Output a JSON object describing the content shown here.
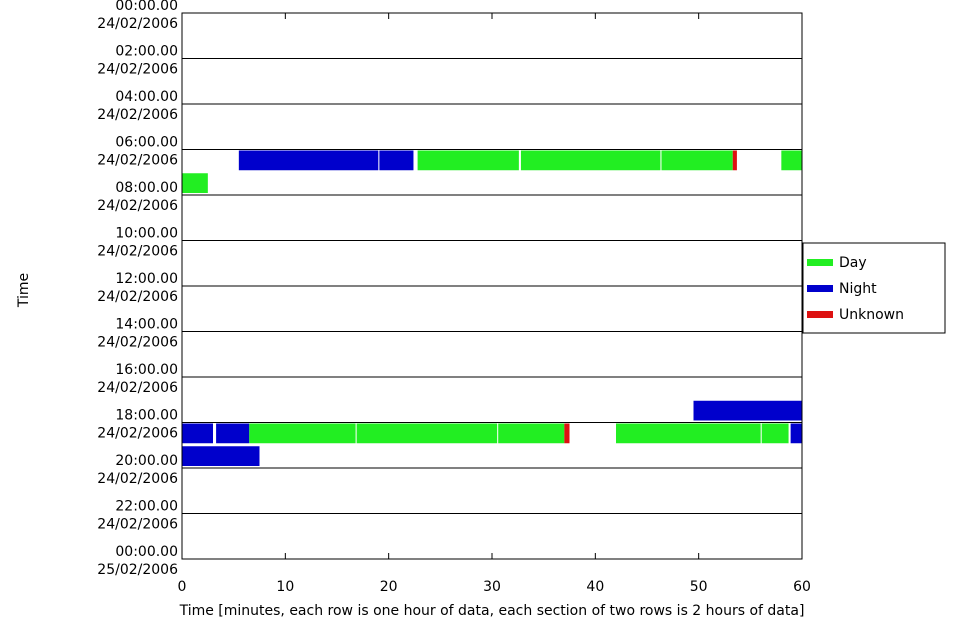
{
  "chart_data": {
    "type": "timeline",
    "xlabel": "Time [minutes, each row is one hour of data, each section of two rows is 2 hours of data]",
    "ylabel": "Time",
    "xlim": [
      0,
      60
    ],
    "xticks": [
      0,
      10,
      20,
      30,
      40,
      50,
      60
    ],
    "ylim": [
      0,
      24
    ],
    "yticks": [
      {
        "value": 0,
        "label": [
          "00:00.00",
          "24/02/2006"
        ]
      },
      {
        "value": 2,
        "label": [
          "02:00.00",
          "24/02/2006"
        ]
      },
      {
        "value": 4,
        "label": [
          "04:00.00",
          "24/02/2006"
        ]
      },
      {
        "value": 6,
        "label": [
          "06:00.00",
          "24/02/2006"
        ]
      },
      {
        "value": 8,
        "label": [
          "08:00.00",
          "24/02/2006"
        ]
      },
      {
        "value": 10,
        "label": [
          "10:00.00",
          "24/02/2006"
        ]
      },
      {
        "value": 12,
        "label": [
          "12:00.00",
          "24/02/2006"
        ]
      },
      {
        "value": 14,
        "label": [
          "14:00.00",
          "24/02/2006"
        ]
      },
      {
        "value": 16,
        "label": [
          "16:00.00",
          "24/02/2006"
        ]
      },
      {
        "value": 18,
        "label": [
          "18:00.00",
          "24/02/2006"
        ]
      },
      {
        "value": 20,
        "label": [
          "20:00.00",
          "24/02/2006"
        ]
      },
      {
        "value": 22,
        "label": [
          "22:00.00",
          "24/02/2006"
        ]
      },
      {
        "value": 24,
        "label": [
          "00:00.00",
          "25/02/2006"
        ]
      }
    ],
    "grid": true,
    "legend": "right",
    "series": [
      {
        "name": "Day",
        "color": "#22ee22",
        "segments": [
          {
            "row": 6,
            "start": 22.8,
            "end": 32.6
          },
          {
            "row": 6,
            "start": 32.8,
            "end": 46.3
          },
          {
            "row": 6,
            "start": 46.4,
            "end": 53.3
          },
          {
            "row": 6,
            "start": 58,
            "end": 60
          },
          {
            "row": 7,
            "start": 0,
            "end": 2.5
          },
          {
            "row": 18,
            "start": 6.5,
            "end": 16.8
          },
          {
            "row": 18,
            "start": 16.9,
            "end": 30.5
          },
          {
            "row": 18,
            "start": 30.6,
            "end": 37
          },
          {
            "row": 18,
            "start": 42,
            "end": 56
          },
          {
            "row": 18,
            "start": 56.1,
            "end": 58.7
          }
        ]
      },
      {
        "name": "Night",
        "color": "#0000cc",
        "segments": [
          {
            "row": 6,
            "start": 5.5,
            "end": 19
          },
          {
            "row": 6,
            "start": 19.1,
            "end": 22.4
          },
          {
            "row": 17,
            "start": 49.5,
            "end": 60
          },
          {
            "row": 18,
            "start": 0,
            "end": 3
          },
          {
            "row": 18,
            "start": 3.3,
            "end": 6.5
          },
          {
            "row": 18,
            "start": 58.9,
            "end": 60
          },
          {
            "row": 19,
            "start": 0,
            "end": 7.5
          }
        ]
      },
      {
        "name": "Unknown",
        "color": "#dd1111",
        "segments": [
          {
            "row": 6,
            "start": 53.3,
            "end": 53.7
          },
          {
            "row": 18,
            "start": 37,
            "end": 37.5
          }
        ]
      }
    ]
  }
}
